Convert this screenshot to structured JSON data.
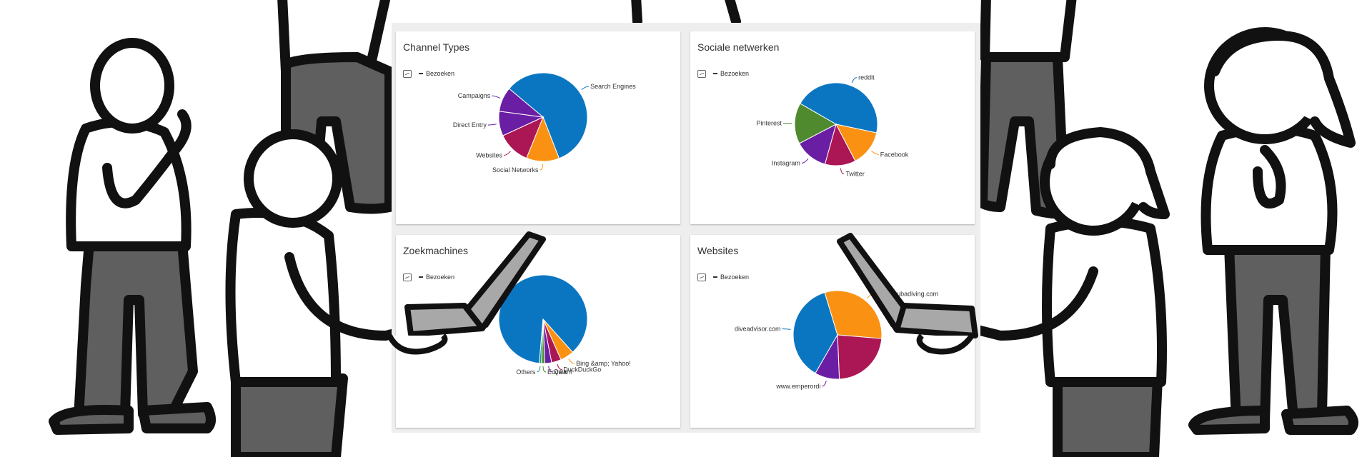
{
  "colors": {
    "blue": "#0a76c2",
    "orange": "#fb9112",
    "crimson": "#ab1655",
    "purple": "#6a1ea4",
    "green": "#4f8a2f",
    "teal": "#11998b"
  },
  "legend_icon": "chart-image-icon",
  "chart_data": [
    {
      "type": "pie",
      "title": "Channel Types",
      "legend": [
        "Bezoeken"
      ],
      "legend_position": "top-left",
      "series": [
        {
          "name": "Bezoeken",
          "values": [
            58,
            12,
            12,
            9,
            9
          ]
        }
      ],
      "categories": [
        "Search Engines",
        "Social Networks",
        "Websites",
        "Direct Entry",
        "Campaigns"
      ],
      "slice_colors": [
        "#0a76c2",
        "#fb9112",
        "#ab1655",
        "#6a1ea4",
        "#6a1ea4"
      ]
    },
    {
      "type": "pie",
      "title": "Sociale netwerken",
      "legend": [
        "Bezoeken"
      ],
      "legend_position": "top-left",
      "series": [
        {
          "name": "Bezoeken",
          "values": [
            45,
            14,
            12,
            13,
            16
          ]
        }
      ],
      "categories": [
        "reddit",
        "Facebook",
        "Twitter",
        "Instagram",
        "Pinterest"
      ],
      "slice_colors": [
        "#0a76c2",
        "#fb9112",
        "#ab1655",
        "#6a1ea4",
        "#4f8a2f"
      ]
    },
    {
      "type": "pie",
      "title": "Zoekmachines",
      "legend": [
        "Bezoeken"
      ],
      "legend_position": "top-left",
      "series": [
        {
          "name": "Bezoeken",
          "values": [
            87,
            5,
            3.5,
            2.5,
            1.2,
            0.8
          ]
        }
      ],
      "categories": [
        "",
        "Bing &amp; Yahoo!",
        "DuckDuckGo",
        "Qwant",
        "Ecosia",
        "Others"
      ],
      "slice_colors": [
        "#0a76c2",
        "#fb9112",
        "#ab1655",
        "#6a1ea4",
        "#4f8a2f",
        "#11998b"
      ]
    },
    {
      "type": "pie",
      "title": "Websites",
      "legend": [
        "Bezoeken"
      ],
      "legend_position": "top-left",
      "series": [
        {
          "name": "Bezoeken",
          "values": [
            37,
            31,
            23,
            9
          ]
        }
      ],
      "categories": [
        "diveadvisor.com",
        "www.scubadiving.com",
        "",
        "www.emperordi"
      ],
      "slice_colors": [
        "#0a76c2",
        "#fb9112",
        "#ab1655",
        "#6a1ea4"
      ]
    }
  ]
}
